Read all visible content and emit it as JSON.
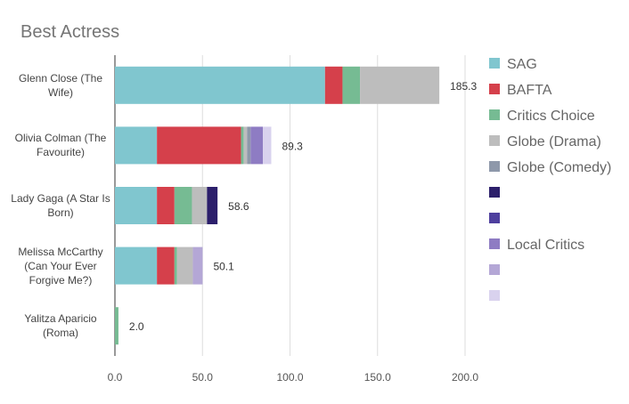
{
  "chart_data": {
    "type": "stacked-bar",
    "orientation": "horizontal",
    "title": "Best Actress",
    "categories": [
      "Glenn Close (The Wife)",
      "Olivia Colman (The Favourite)",
      "Lady Gaga (A Star Is Born)",
      "Melissa McCarthy (Can Your Ever Forgive Me?)",
      "Yalitza Aparicio (Roma)"
    ],
    "series": [
      {
        "name": "SAG",
        "color": "#80c6cf",
        "values": [
          120,
          24,
          24,
          24,
          null
        ]
      },
      {
        "name": "BAFTA",
        "color": "#d5404b",
        "values": [
          10,
          48,
          10,
          10,
          null
        ]
      },
      {
        "name": "Critics Choice",
        "color": "#76bb93",
        "values": [
          10,
          1.5,
          10,
          1.5,
          2.0
        ]
      },
      {
        "name": "Globe (Drama)",
        "color": "#bdbdbd",
        "values": [
          45.3,
          2,
          8.6,
          9,
          null
        ]
      },
      {
        "name": "Globe (Comedy)",
        "color": "#8e98aa",
        "values": [
          null,
          2,
          null,
          null,
          null
        ]
      },
      {
        "name": null,
        "color": "#2c1f6b",
        "values": [
          null,
          null,
          6,
          null,
          null
        ]
      },
      {
        "name": null,
        "color": "#4e3f9e",
        "values": [
          null,
          null,
          null,
          null,
          null
        ]
      },
      {
        "name": "Local Critics",
        "color": "#8e7cc3",
        "values": [
          null,
          7,
          null,
          null,
          null
        ]
      },
      {
        "name": null,
        "color": "#b4a7d6",
        "values": [
          null,
          null,
          null,
          5.6,
          null
        ]
      },
      {
        "name": null,
        "color": "#d9d2ee",
        "values": [
          null,
          4.8,
          null,
          null,
          null
        ]
      }
    ],
    "value_labels": [
      "185.3",
      "89.3",
      "58.6",
      "50.1",
      "2.0"
    ],
    "xlim": [
      0,
      200
    ],
    "xticks": [
      {
        "value": 0,
        "label": "0.0"
      },
      {
        "value": 50,
        "label": "50.0"
      },
      {
        "value": 100,
        "label": "100.0"
      },
      {
        "value": 150,
        "label": "150.0"
      },
      {
        "value": 200,
        "label": "200.0"
      }
    ],
    "grid": true,
    "legend": "right"
  }
}
